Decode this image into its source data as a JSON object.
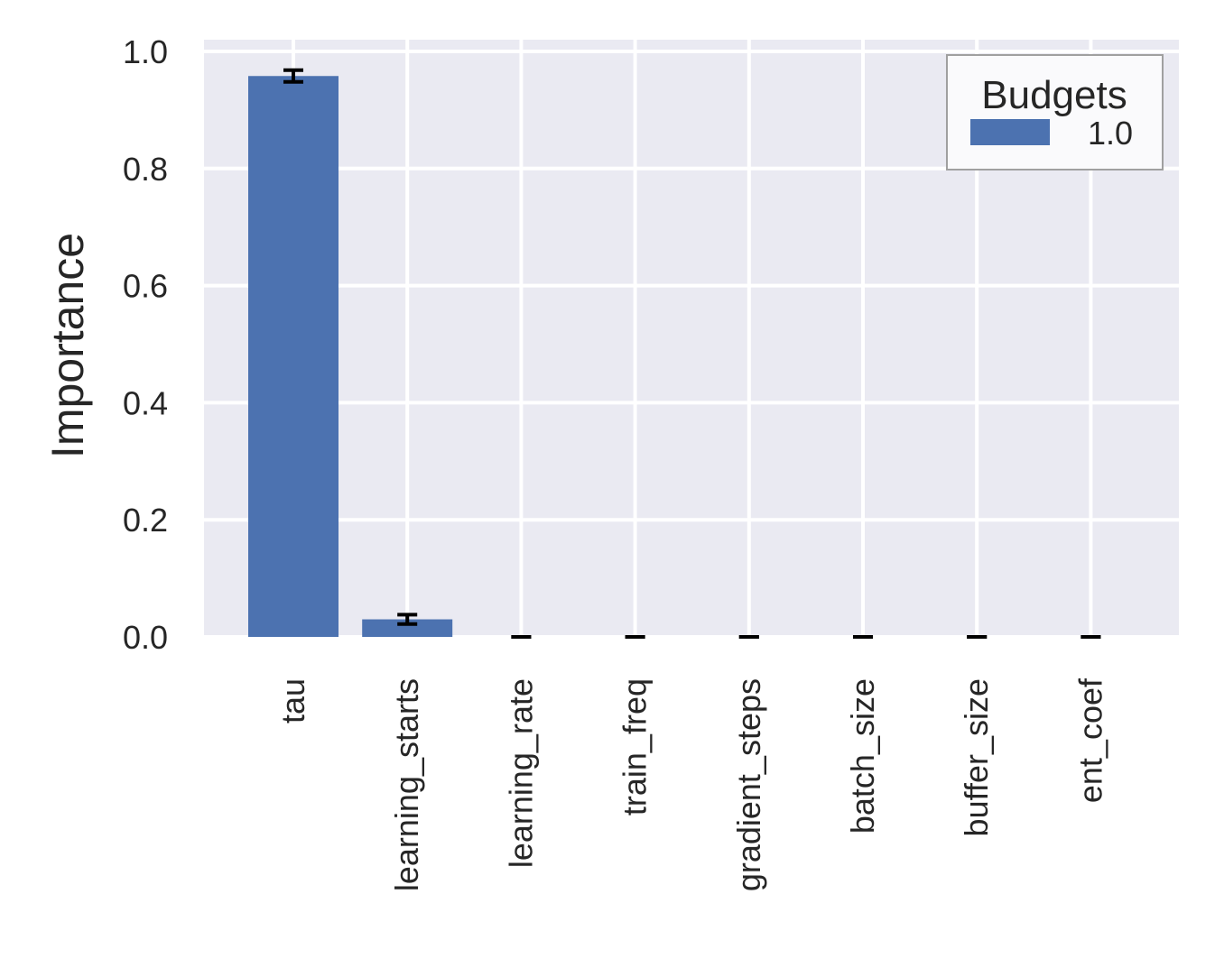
{
  "chart_data": {
    "type": "bar",
    "title": "",
    "xlabel": "",
    "ylabel": "Importance",
    "categories": [
      "tau",
      "learning_starts",
      "learning_rate",
      "train_freq",
      "gradient_steps",
      "batch_size",
      "buffer_size",
      "ent_coef"
    ],
    "series": [
      {
        "name": "1.0",
        "color": "#4c72b0",
        "values": [
          0.958,
          0.03,
          0.0,
          0.0,
          0.0,
          0.0,
          0.0,
          0.0
        ],
        "error": [
          0.01,
          0.008,
          0.0,
          0.0,
          0.0,
          0.0,
          0.0,
          0.0
        ]
      }
    ],
    "ylim": [
      0.0,
      1.0
    ],
    "yticks": [
      0.0,
      0.2,
      0.4,
      0.6,
      0.8,
      1.0
    ],
    "ytick_labels": [
      "0.0",
      "0.2",
      "0.4",
      "0.6",
      "0.8",
      "1.0"
    ],
    "grid": true,
    "background": "#eaeaf2",
    "legend": {
      "title": "Budgets",
      "placement": "top-right",
      "entries": [
        "1.0"
      ]
    }
  }
}
